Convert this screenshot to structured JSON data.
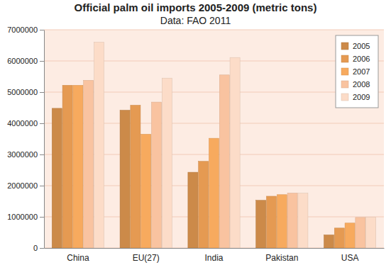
{
  "chart_data": {
    "type": "bar",
    "title": "Official palm oil imports 2005-2009 (metric tons)",
    "subtitle": "Data: FAO 2011",
    "categories": [
      "China",
      "EU(27)",
      "India",
      "Pakistan",
      "USA"
    ],
    "series": [
      {
        "name": "2005",
        "color": "#cc8a49",
        "values": [
          4480000,
          4420000,
          2430000,
          1530000,
          420000
        ]
      },
      {
        "name": "2006",
        "color": "#e59a52",
        "values": [
          5220000,
          4580000,
          2780000,
          1660000,
          640000
        ]
      },
      {
        "name": "2007",
        "color": "#f7aa5e",
        "values": [
          5220000,
          3650000,
          3520000,
          1710000,
          800000
        ]
      },
      {
        "name": "2008",
        "color": "#f9c3a0",
        "values": [
          5380000,
          4680000,
          5550000,
          1760000,
          980000
        ]
      },
      {
        "name": "2009",
        "color": "#fcdcc8",
        "values": [
          6600000,
          5450000,
          6110000,
          1760000,
          990000
        ]
      }
    ],
    "ylim": [
      0,
      7000000
    ],
    "yticks": [
      0,
      1000000,
      2000000,
      3000000,
      4000000,
      5000000,
      6000000,
      7000000
    ],
    "grid": true,
    "legend": "top-right"
  }
}
